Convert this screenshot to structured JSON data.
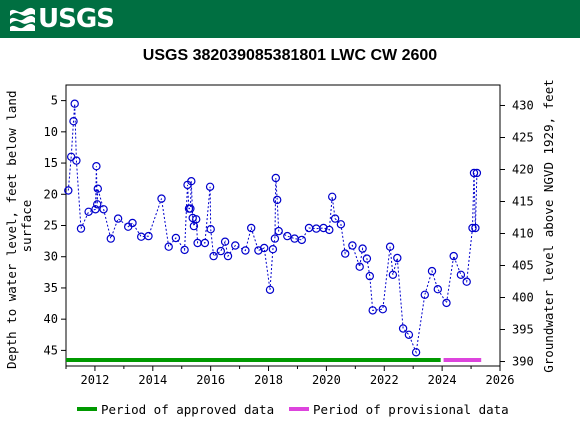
{
  "header": {
    "logo_text": "USGS",
    "logo_icon": "usgs-wave-icon",
    "brand_color": "#006f41"
  },
  "chart_data": {
    "type": "scatter",
    "title": "USGS 382039085381801 LWC CW 2600",
    "ylabel_left_lines": [
      "Depth to water level, feet below land",
      "surface"
    ],
    "ylabel_right": "Groundwater level above NGVD 1929, feet",
    "xlim": [
      2011,
      2026
    ],
    "ylim_left": [
      47.5,
      2.5
    ],
    "ylim_right": [
      389.3,
      433.2
    ],
    "x_ticks": [
      2012,
      2014,
      2016,
      2018,
      2020,
      2022,
      2024,
      2026
    ],
    "y_ticks_left": [
      5,
      10,
      15,
      20,
      25,
      30,
      35,
      40,
      45
    ],
    "y_ticks_right": [
      390,
      395,
      400,
      405,
      410,
      415,
      420,
      425,
      430
    ],
    "series_color": "#0000cc",
    "points": [
      {
        "x": 2011.08,
        "y": 19.4
      },
      {
        "x": 2011.18,
        "y": 14.0
      },
      {
        "x": 2011.26,
        "y": 8.3
      },
      {
        "x": 2011.3,
        "y": 5.5
      },
      {
        "x": 2011.36,
        "y": 14.6
      },
      {
        "x": 2011.52,
        "y": 25.5
      },
      {
        "x": 2011.78,
        "y": 22.8
      },
      {
        "x": 2012.02,
        "y": 22.4
      },
      {
        "x": 2012.05,
        "y": 15.5
      },
      {
        "x": 2012.08,
        "y": 21.6
      },
      {
        "x": 2012.1,
        "y": 19.1
      },
      {
        "x": 2012.3,
        "y": 22.4
      },
      {
        "x": 2012.55,
        "y": 27.1
      },
      {
        "x": 2012.8,
        "y": 23.9
      },
      {
        "x": 2013.15,
        "y": 25.2
      },
      {
        "x": 2013.3,
        "y": 24.6
      },
      {
        "x": 2013.6,
        "y": 26.8
      },
      {
        "x": 2013.85,
        "y": 26.7
      },
      {
        "x": 2014.3,
        "y": 20.7
      },
      {
        "x": 2014.55,
        "y": 28.4
      },
      {
        "x": 2014.8,
        "y": 27.0
      },
      {
        "x": 2015.1,
        "y": 28.9
      },
      {
        "x": 2015.2,
        "y": 18.5
      },
      {
        "x": 2015.25,
        "y": 22.3
      },
      {
        "x": 2015.3,
        "y": 22.3
      },
      {
        "x": 2015.33,
        "y": 17.9
      },
      {
        "x": 2015.38,
        "y": 23.8
      },
      {
        "x": 2015.42,
        "y": 25.1
      },
      {
        "x": 2015.5,
        "y": 24.0
      },
      {
        "x": 2015.55,
        "y": 27.8
      },
      {
        "x": 2015.8,
        "y": 27.8
      },
      {
        "x": 2015.98,
        "y": 18.8
      },
      {
        "x": 2016.0,
        "y": 25.6
      },
      {
        "x": 2016.1,
        "y": 29.9
      },
      {
        "x": 2016.35,
        "y": 29.1
      },
      {
        "x": 2016.5,
        "y": 27.6
      },
      {
        "x": 2016.6,
        "y": 29.9
      },
      {
        "x": 2016.85,
        "y": 28.2
      },
      {
        "x": 2017.2,
        "y": 29.0
      },
      {
        "x": 2017.4,
        "y": 25.4
      },
      {
        "x": 2017.65,
        "y": 29.0
      },
      {
        "x": 2017.85,
        "y": 28.6
      },
      {
        "x": 2018.05,
        "y": 35.3
      },
      {
        "x": 2018.15,
        "y": 28.8
      },
      {
        "x": 2018.22,
        "y": 27.1
      },
      {
        "x": 2018.25,
        "y": 17.4
      },
      {
        "x": 2018.3,
        "y": 20.9
      },
      {
        "x": 2018.35,
        "y": 25.9
      },
      {
        "x": 2018.65,
        "y": 26.7
      },
      {
        "x": 2018.9,
        "y": 27.1
      },
      {
        "x": 2019.15,
        "y": 27.3
      },
      {
        "x": 2019.4,
        "y": 25.4
      },
      {
        "x": 2019.65,
        "y": 25.5
      },
      {
        "x": 2019.9,
        "y": 25.4
      },
      {
        "x": 2020.1,
        "y": 25.7
      },
      {
        "x": 2020.2,
        "y": 20.4
      },
      {
        "x": 2020.3,
        "y": 23.9
      },
      {
        "x": 2020.5,
        "y": 24.8
      },
      {
        "x": 2020.65,
        "y": 29.5
      },
      {
        "x": 2020.9,
        "y": 28.2
      },
      {
        "x": 2021.15,
        "y": 31.6
      },
      {
        "x": 2021.25,
        "y": 28.7
      },
      {
        "x": 2021.4,
        "y": 30.3
      },
      {
        "x": 2021.5,
        "y": 33.1
      },
      {
        "x": 2021.6,
        "y": 38.6
      },
      {
        "x": 2021.95,
        "y": 38.4
      },
      {
        "x": 2022.2,
        "y": 28.4
      },
      {
        "x": 2022.3,
        "y": 32.9
      },
      {
        "x": 2022.45,
        "y": 30.2
      },
      {
        "x": 2022.65,
        "y": 41.5
      },
      {
        "x": 2022.85,
        "y": 42.5
      },
      {
        "x": 2023.1,
        "y": 45.3
      },
      {
        "x": 2023.4,
        "y": 36.1
      },
      {
        "x": 2023.65,
        "y": 32.3
      },
      {
        "x": 2023.85,
        "y": 35.2
      },
      {
        "x": 2024.15,
        "y": 37.4
      },
      {
        "x": 2024.4,
        "y": 29.9
      },
      {
        "x": 2024.65,
        "y": 32.9
      },
      {
        "x": 2024.85,
        "y": 34.0
      },
      {
        "x": 2025.05,
        "y": 25.4
      },
      {
        "x": 2025.1,
        "y": 16.6
      },
      {
        "x": 2025.15,
        "y": 25.4
      },
      {
        "x": 2025.2,
        "y": 16.6
      }
    ],
    "periods": [
      {
        "label": "Period of approved data",
        "start": 2011.0,
        "end": 2023.95,
        "color": "#009900"
      },
      {
        "label": "Period of provisional data",
        "start": 2024.05,
        "end": 2025.35,
        "color": "#dd44dd"
      }
    ],
    "legend_placement": "bottom"
  }
}
